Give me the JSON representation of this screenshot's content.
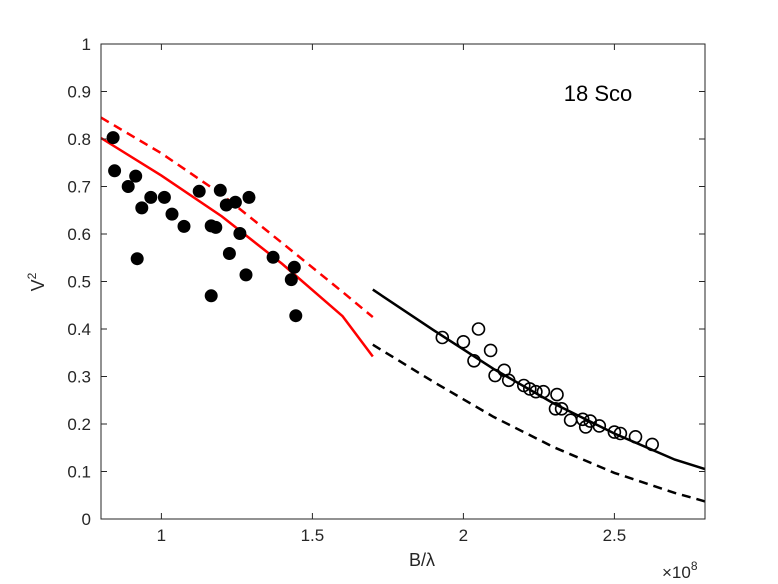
{
  "chart_data": {
    "type": "scatter",
    "title": "",
    "annotation": "18 Sco",
    "xlabel": "B/λ",
    "ylabel_base": "V",
    "ylabel_sup": "2",
    "x_exponent_label": "×10",
    "x_exponent_sup": "8",
    "xlim": [
      0.8,
      2.8
    ],
    "ylim": [
      0,
      1
    ],
    "x_ticks": [
      1,
      1.5,
      2,
      2.5
    ],
    "x_tick_labels": [
      "1",
      "1.5",
      "2",
      "2.5"
    ],
    "y_ticks": [
      0,
      0.1,
      0.2,
      0.3,
      0.4,
      0.5,
      0.6,
      0.7,
      0.8,
      0.9,
      1
    ],
    "y_tick_labels": [
      "0",
      "0.1",
      "0.2",
      "0.3",
      "0.4",
      "0.5",
      "0.6",
      "0.7",
      "0.8",
      "0.9",
      "1"
    ],
    "grid": false,
    "colors": {
      "red": "#ff0000",
      "black": "#000000",
      "axis": "#262626"
    },
    "series": [
      {
        "marker": "filled-circle",
        "color": "#000000",
        "points": [
          [
            0.84,
            0.803
          ],
          [
            0.845,
            0.733
          ],
          [
            0.89,
            0.7
          ],
          [
            0.915,
            0.722
          ],
          [
            0.92,
            0.548
          ],
          [
            0.935,
            0.655
          ],
          [
            0.965,
            0.677
          ],
          [
            1.01,
            0.677
          ],
          [
            1.035,
            0.642
          ],
          [
            1.075,
            0.616
          ],
          [
            1.125,
            0.69
          ],
          [
            1.165,
            0.47
          ],
          [
            1.165,
            0.617
          ],
          [
            1.18,
            0.614
          ],
          [
            1.195,
            0.692
          ],
          [
            1.215,
            0.661
          ],
          [
            1.225,
            0.559
          ],
          [
            1.245,
            0.667
          ],
          [
            1.26,
            0.601
          ],
          [
            1.28,
            0.514
          ],
          [
            1.29,
            0.677
          ],
          [
            1.37,
            0.551
          ],
          [
            1.43,
            0.504
          ],
          [
            1.44,
            0.53
          ],
          [
            1.445,
            0.428
          ]
        ]
      },
      {
        "marker": "open-circle",
        "color": "#000000",
        "points": [
          [
            1.93,
            0.382
          ],
          [
            2.0,
            0.373
          ],
          [
            2.035,
            0.333
          ],
          [
            2.05,
            0.4
          ],
          [
            2.09,
            0.355
          ],
          [
            2.105,
            0.302
          ],
          [
            2.135,
            0.313
          ],
          [
            2.15,
            0.292
          ],
          [
            2.2,
            0.281
          ],
          [
            2.22,
            0.274
          ],
          [
            2.24,
            0.268
          ],
          [
            2.265,
            0.268
          ],
          [
            2.305,
            0.232
          ],
          [
            2.31,
            0.262
          ],
          [
            2.325,
            0.232
          ],
          [
            2.355,
            0.208
          ],
          [
            2.395,
            0.21
          ],
          [
            2.405,
            0.194
          ],
          [
            2.42,
            0.206
          ],
          [
            2.45,
            0.196
          ],
          [
            2.5,
            0.183
          ],
          [
            2.52,
            0.18
          ],
          [
            2.57,
            0.173
          ],
          [
            2.625,
            0.157
          ]
        ]
      },
      {
        "line": "solid",
        "color": "#ff0000",
        "points": [
          [
            0.8,
            0.802
          ],
          [
            1.0,
            0.723
          ],
          [
            1.2,
            0.637
          ],
          [
            1.4,
            0.537
          ],
          [
            1.6,
            0.427
          ],
          [
            1.7,
            0.342
          ]
        ]
      },
      {
        "line": "dashed",
        "color": "#ff0000",
        "points": [
          [
            0.8,
            0.845
          ],
          [
            1.0,
            0.77
          ],
          [
            1.2,
            0.683
          ],
          [
            1.4,
            0.581
          ],
          [
            1.6,
            0.478
          ],
          [
            1.7,
            0.425
          ]
        ]
      },
      {
        "line": "solid",
        "color": "#000000",
        "points": [
          [
            1.7,
            0.483
          ],
          [
            1.9,
            0.398
          ],
          [
            2.1,
            0.316
          ],
          [
            2.3,
            0.243
          ],
          [
            2.5,
            0.18
          ],
          [
            2.7,
            0.125
          ],
          [
            2.8,
            0.105
          ]
        ]
      },
      {
        "line": "dashed",
        "color": "#000000",
        "points": [
          [
            1.7,
            0.367
          ],
          [
            1.9,
            0.289
          ],
          [
            2.1,
            0.215
          ],
          [
            2.3,
            0.151
          ],
          [
            2.5,
            0.097
          ],
          [
            2.7,
            0.055
          ],
          [
            2.8,
            0.037
          ]
        ]
      }
    ]
  }
}
